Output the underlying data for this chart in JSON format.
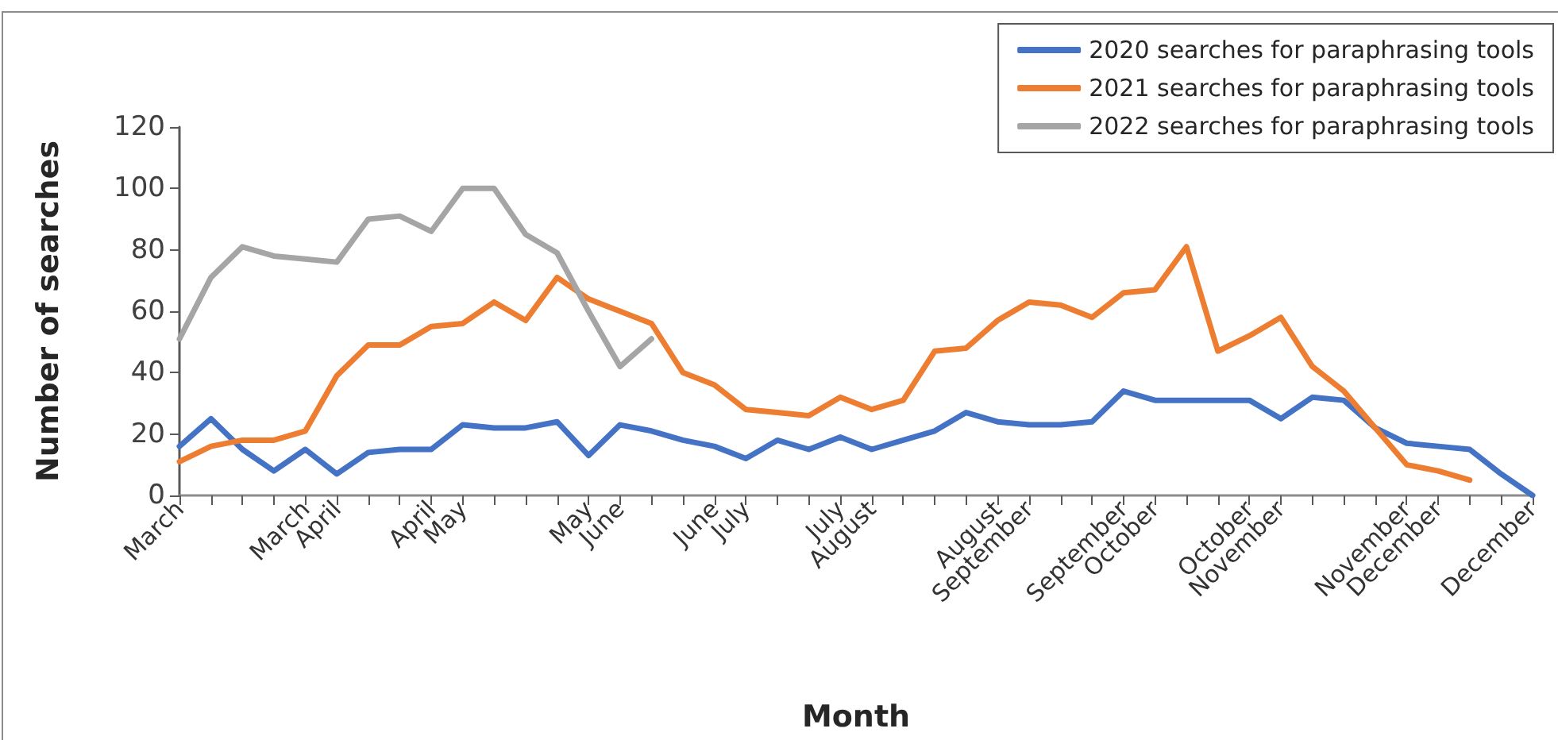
{
  "chart_data": {
    "type": "line",
    "xlabel": "Month",
    "ylabel": "Number of searches",
    "categories": [
      "March",
      null,
      null,
      null,
      "March",
      "April",
      null,
      null,
      "April",
      "May",
      null,
      null,
      null,
      "May",
      "June",
      null,
      null,
      "June",
      "July",
      null,
      null,
      "July",
      "August",
      null,
      null,
      null,
      "August",
      "September",
      null,
      null,
      "September",
      "October",
      null,
      null,
      "October",
      "November",
      null,
      null,
      null,
      "November",
      "December",
      null,
      null,
      "December"
    ],
    "series": [
      {
        "name": "2020 searches for paraphrasing tools",
        "color": "#4472c4",
        "values": [
          16,
          25,
          15,
          8,
          15,
          7,
          14,
          15,
          15,
          23,
          22,
          22,
          24,
          13,
          23,
          21,
          18,
          16,
          12,
          18,
          15,
          19,
          15,
          18,
          21,
          27,
          24,
          23,
          23,
          24,
          34,
          31,
          31,
          31,
          31,
          25,
          32,
          31,
          22,
          17,
          16,
          15,
          7,
          0
        ]
      },
      {
        "name": "2021 searches for paraphrasing tools",
        "color": "#ed7d31",
        "values": [
          11,
          16,
          18,
          18,
          21,
          39,
          49,
          49,
          55,
          56,
          63,
          57,
          71,
          64,
          60,
          56,
          40,
          36,
          28,
          27,
          26,
          32,
          28,
          31,
          47,
          48,
          57,
          63,
          62,
          58,
          66,
          67,
          81,
          47,
          52,
          58,
          42,
          34,
          22,
          10,
          8,
          5,
          null,
          null
        ]
      },
      {
        "name": "2022 searches for paraphrasing tools",
        "color": "#a5a5a5",
        "values": [
          51,
          71,
          81,
          78,
          77,
          76,
          90,
          91,
          86,
          100,
          100,
          85,
          79,
          60,
          42,
          51,
          null,
          null,
          null,
          null,
          null,
          null,
          null,
          null,
          null,
          null,
          null,
          null,
          null,
          null,
          null,
          null,
          null,
          null,
          null,
          null,
          null,
          null,
          null,
          null,
          null,
          null,
          null,
          null
        ]
      }
    ],
    "ylim": [
      0,
      120
    ],
    "yticks": [
      0,
      20,
      40,
      60,
      80,
      100,
      120
    ],
    "grid": false,
    "legend": "top right",
    "marker": "none",
    "line_style": "solid"
  }
}
